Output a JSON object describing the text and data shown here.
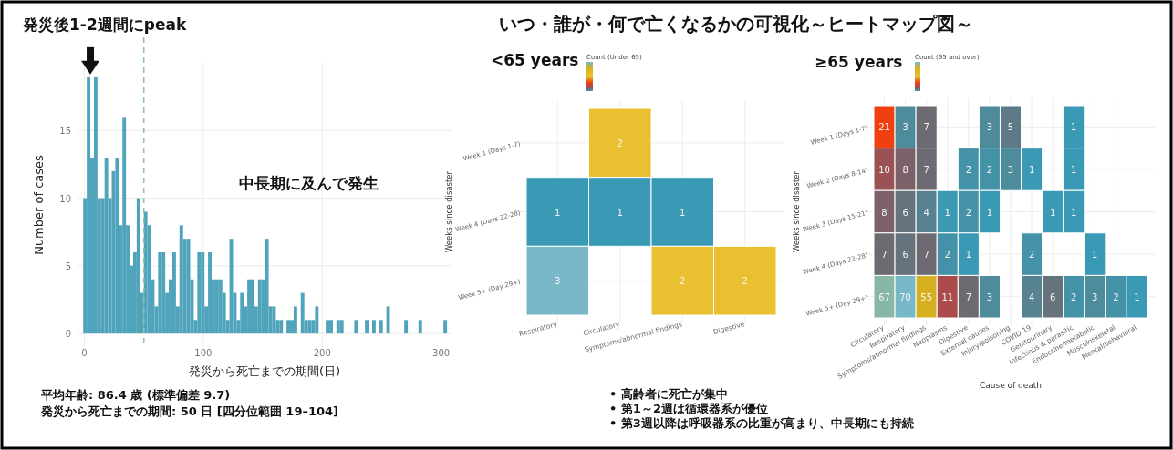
{
  "chart_data": [
    {
      "type": "histogram",
      "xlabel": "発災から死亡までの期間(日)",
      "ylabel": "Number of cases",
      "color": "#4fa3ba",
      "bins": [
        -1,
        2,
        5,
        8,
        11,
        14,
        17,
        20,
        23,
        26,
        29,
        32,
        35,
        38,
        41,
        44,
        47,
        50,
        53,
        56,
        59,
        62,
        65,
        68,
        71,
        74,
        77,
        80,
        83,
        86,
        89,
        92,
        95,
        98,
        101,
        104,
        107,
        110,
        113,
        116,
        119,
        122,
        125,
        128,
        131,
        134,
        137,
        140,
        143,
        146,
        149,
        152,
        155,
        158,
        161,
        164,
        167,
        170,
        173,
        176,
        179,
        182,
        185,
        188,
        191,
        194,
        197,
        200,
        203,
        206,
        209,
        212,
        215,
        218,
        221,
        224,
        227,
        230,
        233,
        236,
        239,
        242,
        245,
        248,
        251,
        254,
        257,
        260,
        263,
        266,
        269,
        272,
        275,
        278,
        281,
        284,
        287,
        290,
        293,
        296,
        299,
        302,
        305
      ],
      "values": [
        10,
        19,
        13,
        19,
        10,
        10,
        13,
        10,
        12,
        13,
        8,
        16,
        8,
        5,
        6,
        10,
        3,
        9,
        8,
        4,
        2,
        6,
        6,
        3,
        4,
        6,
        2,
        8,
        7,
        7,
        4,
        1,
        6,
        6,
        2,
        6,
        4,
        4,
        4,
        3,
        1,
        7,
        3,
        1,
        3,
        2,
        4,
        4,
        2,
        4,
        4,
        7,
        2,
        2,
        1,
        1,
        0,
        1,
        1,
        2,
        0,
        3,
        1,
        1,
        1,
        2,
        0,
        0,
        1,
        1,
        0,
        1,
        1,
        0,
        0,
        0,
        1,
        0,
        0,
        1,
        0,
        1,
        0,
        1,
        0,
        2,
        0,
        0,
        0,
        0,
        1,
        0,
        0,
        0,
        1,
        0,
        0,
        0,
        0,
        0,
        0,
        1
      ],
      "xlim": [
        -5,
        308
      ],
      "ylim": [
        -1,
        20
      ],
      "xticks": [
        0,
        100,
        200,
        300
      ],
      "yticks": [
        0,
        5,
        10,
        15
      ],
      "grid": true,
      "ref_lines": [
        {
          "axis": "x",
          "value": 50,
          "color": "#8fc4a8",
          "line_style": "dashed"
        }
      ],
      "annotations": [
        {
          "text": "発災後1-2週間にpeak",
          "x": 5,
          "y": 19
        },
        "中長期に及んで発生",
        "平均年齢: 86.4 歳 (標準偏差 9.7)",
        "発災から死亡までの期間: 50 日 [四分位範囲 19–104]"
      ]
    },
    {
      "type": "heatmap",
      "title": "いつ・誰が・何で亡くなるかの可視化～ヒートマップ図～",
      "subtitle": "<65 years",
      "clabel": "Count (Under 65)",
      "ylabel": "Weeks since disaster",
      "grid": true,
      "data_labels": true,
      "categories": [
        "Respiratory",
        "Circulatory",
        "Symptoms/abnormal findings",
        "Digestive"
      ],
      "y_categories": [
        "Week 1 (Days 1-7)",
        "Week 4 (Days 22-28)",
        "Week 5+ (Day 29+)"
      ],
      "cells": [
        [
          null,
          2,
          null,
          null
        ],
        [
          1,
          1,
          1,
          null
        ],
        [
          3,
          null,
          2,
          2
        ]
      ],
      "annotations": [
        "• 高齢者に死亡が集中",
        "• 第1～2週は循環器系が優位",
        "• 第3週以降は呼吸器系の比重が高まり、中長期にも持続"
      ]
    },
    {
      "type": "heatmap",
      "subtitle": "≥65 years",
      "clabel": "Count (65 and over)",
      "xlabel": "Cause of death",
      "ylabel": "Weeks since disaster",
      "grid": true,
      "data_labels": true,
      "categories": [
        "Circulatory",
        "Respiratory",
        "Symptoms/abnormal findings",
        "Neoplasms",
        "Digestive",
        "External causes",
        "Injury/poisoning",
        "COVID-19",
        "Genitourinary",
        "Infectious & parasitic",
        "Endocrine/metabolic",
        "Musculoskeletal",
        "Mental/behavioral"
      ],
      "y_categories": [
        "Week 1 (Days 1-7)",
        "Week 2 (Days 8-14)",
        "Week 3 (Days 15-21)",
        "Week 4 (Days 22-28)",
        "Week 5+ (Day 29+)"
      ],
      "cells": [
        [
          21,
          3,
          7,
          null,
          null,
          3,
          5,
          null,
          null,
          1,
          null,
          null,
          null
        ],
        [
          10,
          8,
          7,
          null,
          2,
          2,
          3,
          1,
          null,
          1,
          null,
          null,
          null
        ],
        [
          8,
          6,
          4,
          1,
          2,
          1,
          null,
          null,
          1,
          1,
          null,
          null,
          null
        ],
        [
          7,
          6,
          7,
          2,
          1,
          null,
          null,
          2,
          null,
          null,
          1,
          null,
          null
        ],
        [
          67,
          70,
          55,
          11,
          7,
          3,
          null,
          4,
          6,
          2,
          3,
          2,
          1
        ]
      ]
    }
  ]
}
